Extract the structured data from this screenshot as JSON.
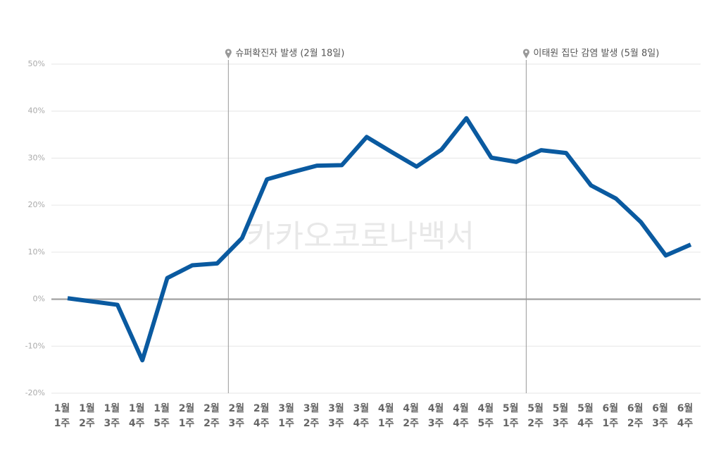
{
  "chart_data": {
    "type": "line",
    "watermark": "카카오코로나백서",
    "annotations": [
      "슈퍼확진자 발생 (2월 18일)",
      "이태원 집단 감염 발생 (5월 8일)"
    ],
    "categories": [
      [
        "1월",
        "1주"
      ],
      [
        "1월",
        "2주"
      ],
      [
        "1월",
        "3주"
      ],
      [
        "1월",
        "4주"
      ],
      [
        "1월",
        "5주"
      ],
      [
        "2월",
        "1주"
      ],
      [
        "2월",
        "2주"
      ],
      [
        "2월",
        "3주"
      ],
      [
        "2월",
        "4주"
      ],
      [
        "3월",
        "1주"
      ],
      [
        "3월",
        "2주"
      ],
      [
        "3월",
        "3주"
      ],
      [
        "3월",
        "4주"
      ],
      [
        "4월",
        "1주"
      ],
      [
        "4월",
        "2주"
      ],
      [
        "4월",
        "3주"
      ],
      [
        "4월",
        "4주"
      ],
      [
        "4월",
        "5주"
      ],
      [
        "5월",
        "1주"
      ],
      [
        "5월",
        "2주"
      ],
      [
        "5월",
        "3주"
      ],
      [
        "5월",
        "4주"
      ],
      [
        "6월",
        "1주"
      ],
      [
        "6월",
        "2주"
      ],
      [
        "6월",
        "3주"
      ],
      [
        "6월",
        "4주"
      ]
    ],
    "series": [
      {
        "color": "#0a5aa0",
        "values": [
          0.2,
          -0.5,
          -1.2,
          -13,
          4.5,
          7.2,
          7.6,
          13,
          25.5,
          27,
          28.4,
          28.5,
          34.5,
          31.3,
          28.2,
          31.8,
          38.5,
          30.1,
          29.2,
          31.7,
          31.1,
          24.2,
          21.4,
          16.4,
          9.3,
          11.6
        ]
      }
    ],
    "ylim": [
      -20,
      50
    ],
    "yticks": [
      {
        "value": -20,
        "label": "-20%"
      },
      {
        "value": -10,
        "label": "-10%"
      },
      {
        "value": 0,
        "label": "0%"
      },
      {
        "value": 10,
        "label": "10%"
      },
      {
        "value": 20,
        "label": "20%"
      },
      {
        "value": 30,
        "label": "30%"
      },
      {
        "value": 40,
        "label": "40%"
      },
      {
        "value": 50,
        "label": "50%"
      }
    ],
    "grid": true
  }
}
